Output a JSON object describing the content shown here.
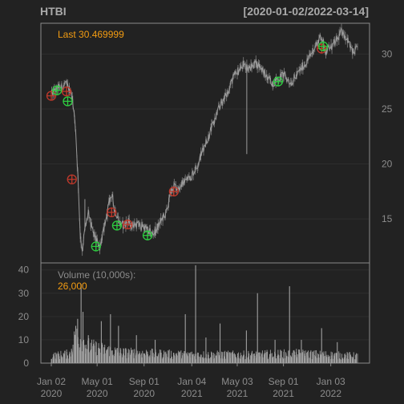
{
  "chart_data": [
    {
      "type": "line",
      "title": "HTBI",
      "date_range": "[2020-01-02/2022-03-14]",
      "last_label": "Last 30.469999",
      "y_ticks": [
        15,
        20,
        25,
        30
      ],
      "ylim": [
        11.0,
        32.8
      ],
      "x_ticks": [
        {
          "date": "2020-01-02",
          "month": "Jan 02",
          "year": "2020"
        },
        {
          "date": "2020-05-01",
          "month": "May 01",
          "year": "2020"
        },
        {
          "date": "2020-09-01",
          "month": "Sep 01",
          "year": "2020"
        },
        {
          "date": "2021-01-04",
          "month": "Jan 04",
          "year": "2021"
        },
        {
          "date": "2021-05-03",
          "month": "May 03",
          "year": "2021"
        },
        {
          "date": "2021-09-01",
          "month": "Sep 01",
          "year": "2021"
        },
        {
          "date": "2022-01-03",
          "month": "Jan 03",
          "year": "2022"
        }
      ],
      "xlim": [
        "2020-01-02",
        "2022-03-14"
      ],
      "series_close": [
        [
          "2020-01-02",
          26.3
        ],
        [
          "2020-01-10",
          26.6
        ],
        [
          "2020-01-20",
          26.9
        ],
        [
          "2020-01-30",
          27.0
        ],
        [
          "2020-02-07",
          27.3
        ],
        [
          "2020-02-14",
          27.0
        ],
        [
          "2020-02-21",
          26.7
        ],
        [
          "2020-02-28",
          25.6
        ],
        [
          "2020-03-06",
          23.0
        ],
        [
          "2020-03-12",
          18.6
        ],
        [
          "2020-03-18",
          13.5
        ],
        [
          "2020-03-23",
          12.2
        ],
        [
          "2020-03-30",
          14.0
        ],
        [
          "2020-04-08",
          15.5
        ],
        [
          "2020-04-15",
          14.4
        ],
        [
          "2020-04-22",
          13.6
        ],
        [
          "2020-04-30",
          13.0
        ],
        [
          "2020-05-08",
          12.5
        ],
        [
          "2020-05-15",
          13.5
        ],
        [
          "2020-05-22",
          14.4
        ],
        [
          "2020-06-01",
          16.4
        ],
        [
          "2020-06-08",
          17.3
        ],
        [
          "2020-06-15",
          16.0
        ],
        [
          "2020-06-22",
          15.4
        ],
        [
          "2020-06-30",
          14.6
        ],
        [
          "2020-07-10",
          14.4
        ],
        [
          "2020-07-20",
          14.8
        ],
        [
          "2020-07-30",
          14.4
        ],
        [
          "2020-08-10",
          14.5
        ],
        [
          "2020-08-20",
          14.4
        ],
        [
          "2020-08-31",
          14.3
        ],
        [
          "2020-09-10",
          14.0
        ],
        [
          "2020-09-21",
          13.6
        ],
        [
          "2020-10-01",
          13.9
        ],
        [
          "2020-10-15",
          14.8
        ],
        [
          "2020-10-30",
          15.6
        ],
        [
          "2020-11-10",
          17.4
        ],
        [
          "2020-11-20",
          18.0
        ],
        [
          "2020-12-01",
          17.8
        ],
        [
          "2020-12-15",
          18.4
        ],
        [
          "2021-01-04",
          19.0
        ],
        [
          "2021-01-20",
          20.0
        ],
        [
          "2021-02-05",
          21.6
        ],
        [
          "2021-02-20",
          22.8
        ],
        [
          "2021-03-05",
          24.0
        ],
        [
          "2021-03-20",
          25.4
        ],
        [
          "2021-04-05",
          26.3
        ],
        [
          "2021-04-20",
          27.6
        ],
        [
          "2021-05-03",
          28.4
        ],
        [
          "2021-05-20",
          29.0
        ],
        [
          "2021-06-05",
          28.7
        ],
        [
          "2021-06-20",
          29.2
        ],
        [
          "2021-07-05",
          28.8
        ],
        [
          "2021-07-20",
          27.8
        ],
        [
          "2021-08-05",
          27.4
        ],
        [
          "2021-08-20",
          27.8
        ],
        [
          "2021-09-01",
          28.1
        ],
        [
          "2021-09-20",
          27.4
        ],
        [
          "2021-10-05",
          28.0
        ],
        [
          "2021-10-20",
          28.8
        ],
        [
          "2021-11-05",
          29.5
        ],
        [
          "2021-11-20",
          30.5
        ],
        [
          "2021-12-01",
          31.2
        ],
        [
          "2021-12-10",
          31.6
        ],
        [
          "2021-12-20",
          30.3
        ],
        [
          "2022-01-03",
          30.6
        ],
        [
          "2022-01-20",
          31.3
        ],
        [
          "2022-02-01",
          32.1
        ],
        [
          "2022-02-15",
          31.4
        ],
        [
          "2022-03-01",
          30.1
        ],
        [
          "2022-03-14",
          30.47
        ]
      ],
      "spikes": [
        {
          "date": "2021-05-28",
          "low": 20.9
        },
        {
          "date": "2020-03-30",
          "high": 16.8
        }
      ],
      "sell_signals": [
        {
          "date": "2020-01-02",
          "value": 26.2
        },
        {
          "date": "2020-02-11",
          "value": 26.6
        },
        {
          "date": "2020-02-25",
          "value": 18.6
        },
        {
          "date": "2020-06-08",
          "value": 15.6
        },
        {
          "date": "2020-07-20",
          "value": 14.5
        },
        {
          "date": "2020-11-18",
          "value": 17.5
        },
        {
          "date": "2021-12-10",
          "value": 30.5
        }
      ],
      "buy_signals": [
        {
          "date": "2020-01-17",
          "value": 26.7
        },
        {
          "date": "2020-02-14",
          "value": 25.7
        },
        {
          "date": "2020-04-28",
          "value": 12.5
        },
        {
          "date": "2020-06-22",
          "value": 14.4
        },
        {
          "date": "2020-09-10",
          "value": 13.5
        },
        {
          "date": "2021-08-18",
          "value": 27.5
        },
        {
          "date": "2021-12-14",
          "value": 30.7
        }
      ],
      "colors": {
        "background": "#222222",
        "frame": "#8a8a8a",
        "grid": "#2e2e2e",
        "text": "#8c8c8c",
        "title": "#a9a9a9",
        "price_line": "#9a9a9a",
        "accent": "#f39c12",
        "sell": "#c0392b",
        "buy": "#2ecc40",
        "volume": "#a0a0a0"
      }
    },
    {
      "type": "bar",
      "label": "Volume (10,000s):",
      "last_value": "26,000",
      "y_ticks": [
        0,
        10,
        20,
        30,
        40
      ],
      "ylim": [
        0,
        43
      ],
      "baseline_levels": [
        [
          "2020-01-02",
          3.0
        ],
        [
          "2020-02-20",
          4.0
        ],
        [
          "2020-03-05",
          11.0
        ],
        [
          "2020-03-20",
          10.0
        ],
        [
          "2020-04-10",
          7.0
        ],
        [
          "2020-05-10",
          6.0
        ],
        [
          "2020-07-01",
          4.5
        ],
        [
          "2020-10-01",
          4.0
        ],
        [
          "2021-01-01",
          3.5
        ],
        [
          "2021-06-01",
          3.5
        ],
        [
          "2021-10-01",
          4.0
        ],
        [
          "2022-03-14",
          3.0
        ]
      ],
      "spikes": [
        {
          "date": "2020-03-06",
          "value": 16.0
        },
        {
          "date": "2020-03-11",
          "value": 19.0
        },
        {
          "date": "2020-03-20",
          "value": 34.0
        },
        {
          "date": "2020-03-25",
          "value": 22.0
        },
        {
          "date": "2020-04-08",
          "value": 12.0
        },
        {
          "date": "2020-05-12",
          "value": 18.0
        },
        {
          "date": "2020-06-05",
          "value": 21.0
        },
        {
          "date": "2020-06-26",
          "value": 16.0
        },
        {
          "date": "2020-08-12",
          "value": 12.0
        },
        {
          "date": "2020-09-30",
          "value": 10.0
        },
        {
          "date": "2020-12-18",
          "value": 21.0
        },
        {
          "date": "2021-01-14",
          "value": 42.0
        },
        {
          "date": "2021-02-10",
          "value": 11.0
        },
        {
          "date": "2021-03-19",
          "value": 17.0
        },
        {
          "date": "2021-05-27",
          "value": 14.0
        },
        {
          "date": "2021-06-25",
          "value": 30.0
        },
        {
          "date": "2021-08-10",
          "value": 10.0
        },
        {
          "date": "2021-09-17",
          "value": 33.0
        },
        {
          "date": "2021-10-18",
          "value": 10.0
        },
        {
          "date": "2021-12-10",
          "value": 15.0
        },
        {
          "date": "2022-01-20",
          "value": 9.0
        }
      ]
    }
  ]
}
